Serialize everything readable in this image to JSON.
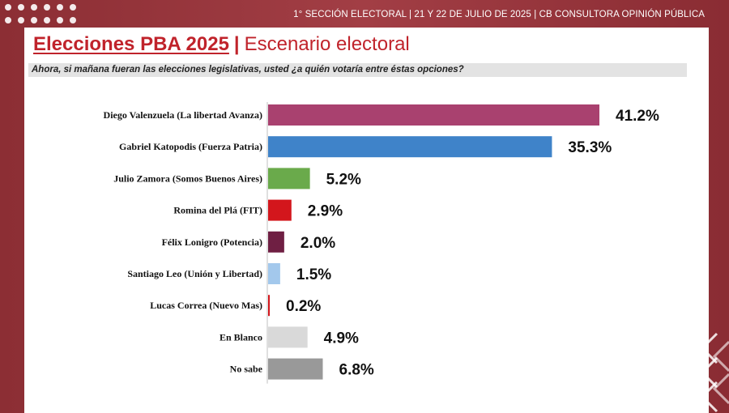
{
  "header": {
    "info": "1° SECCIÓN ELECTORAL  | 21 Y 22 DE JULIO DE 2025 | CB CONSULTORA OPINIÓN PÚBLICA"
  },
  "title": {
    "main": "Elecciones PBA 2025",
    "separator": "|",
    "subtitle": "Escenario electoral"
  },
  "question": "Ahora, si mañana fueran las elecciones legislativas, usted ¿a quién votaría entre éstas opciones?",
  "chart_data": {
    "type": "bar",
    "orientation": "horizontal",
    "title": "Escenario electoral",
    "categories": [
      "Diego Valenzuela (La libertad Avanza)",
      "Gabriel Katopodis (Fuerza Patria)",
      "Julio Zamora (Somos Buenos Aires)",
      "Romina del Plá (FIT)",
      "Félix Lonigro (Potencia)",
      "Santiago Leo (Unión y Libertad)",
      "Lucas Correa (Nuevo Mas)",
      "En Blanco",
      "No sabe"
    ],
    "values": [
      41.2,
      35.3,
      5.2,
      2.9,
      2.0,
      1.5,
      0.2,
      4.9,
      6.8
    ],
    "labels": [
      "41.2%",
      "35.3%",
      "5.2%",
      "2.9%",
      "2.0%",
      "1.5%",
      "0.2%",
      "4.9%",
      "6.8%"
    ],
    "colors": [
      "#a9416f",
      "#3f83c9",
      "#6aaa4b",
      "#d3161c",
      "#6f1f43",
      "#a3c8ec",
      "#d3161c",
      "#d9d9d9",
      "#999999"
    ],
    "xlim": [
      0,
      45
    ],
    "xlabel": "",
    "ylabel": "",
    "grid": false,
    "legend": "none"
  }
}
